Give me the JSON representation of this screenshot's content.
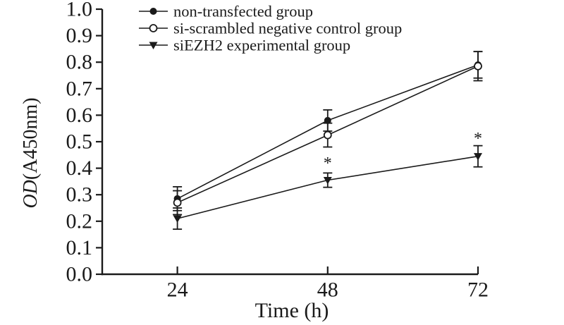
{
  "figure": {
    "background": "#ffffff",
    "ink_color": "#1a1a1a"
  },
  "chart_data": {
    "type": "line",
    "title": "",
    "xlabel": "Time (h)",
    "ylabel_italic": "OD",
    "ylabel_rest": "(A450nm)",
    "x": [
      24,
      48,
      72
    ],
    "x_tick_labels": [
      "24",
      "48",
      "72"
    ],
    "y_tick_labels": [
      "0.0",
      "0.1",
      "0.2",
      "0.3",
      "0.4",
      "0.5",
      "0.6",
      "0.7",
      "0.8",
      "0.9",
      "1.0"
    ],
    "xlim": [
      12,
      72
    ],
    "ylim": [
      0,
      1.0
    ],
    "grid": false,
    "legend_position": "top-left-inside",
    "series": [
      {
        "name": "non-transfected group",
        "marker": "filled-circle",
        "values": [
          0.285,
          0.58,
          0.79
        ],
        "errors": [
          0.045,
          0.04,
          0.05
        ]
      },
      {
        "name": "si-scrambled negative control group",
        "marker": "open-circle",
        "values": [
          0.27,
          0.525,
          0.785
        ],
        "errors": [
          0.045,
          0.045,
          0.055
        ]
      },
      {
        "name": "siEZH2 experimental group",
        "marker": "filled-triangle-down",
        "values": [
          0.21,
          0.355,
          0.445
        ],
        "errors": [
          0.04,
          0.027,
          0.04
        ]
      }
    ],
    "annotations": [
      {
        "label": "*",
        "x": 48,
        "y": 0.428
      },
      {
        "label": "*",
        "x": 72,
        "y": 0.521
      }
    ]
  }
}
